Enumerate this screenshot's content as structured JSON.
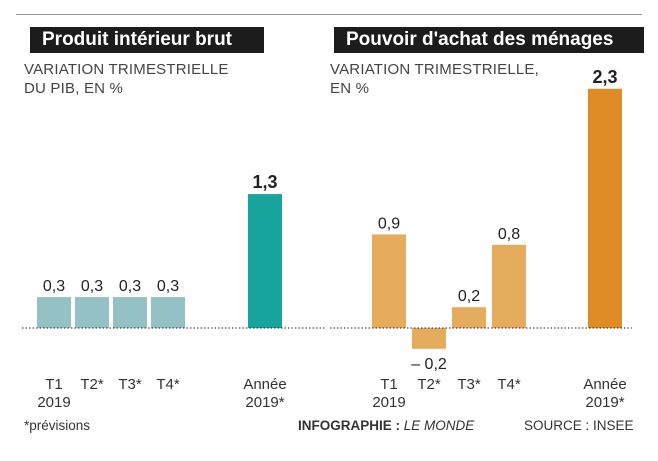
{
  "charts": [
    {
      "title": "Produit intérieur brut",
      "subtitle_line1": "VARIATION TRIMESTRIELLE",
      "subtitle_line2": "DU PIB, EN %"
    },
    {
      "title": "Pouvoir d'achat des ménages",
      "subtitle_line1": "VARIATION TRIMESTRIELLE,",
      "subtitle_line2": "EN %"
    }
  ],
  "chart_data": [
    {
      "type": "bar",
      "title": "Produit intérieur brut",
      "subtitle": "VARIATION TRIMESTRIELLE DU PIB, EN %",
      "categories": [
        [
          "T1",
          "2019"
        ],
        [
          "T2*",
          ""
        ],
        [
          "T3*",
          ""
        ],
        [
          "T4*",
          ""
        ],
        [
          "Année",
          "2019*"
        ]
      ],
      "values": [
        0.3,
        0.3,
        0.3,
        0.3,
        1.3
      ],
      "value_labels": [
        "0,3",
        "0,3",
        "0,3",
        "0,3",
        "1,3"
      ],
      "colors": [
        "#94c1c3",
        "#94c1c3",
        "#94c1c3",
        "#94c1c3",
        "#17a49c"
      ],
      "highlight_last": true
    },
    {
      "type": "bar",
      "title": "Pouvoir d'achat des ménages",
      "subtitle": "VARIATION TRIMESTRIELLE, EN %",
      "categories": [
        [
          "T1",
          "2019"
        ],
        [
          "T2*",
          ""
        ],
        [
          "T3*",
          ""
        ],
        [
          "T4*",
          ""
        ],
        [
          "Année",
          "2019*"
        ]
      ],
      "values": [
        0.9,
        -0.2,
        0.2,
        0.8,
        2.3
      ],
      "value_labels": [
        "0,9",
        "– 0,2",
        "0,2",
        "0,8",
        "2,3"
      ],
      "colors": [
        "#e5ac5e",
        "#e5ac5e",
        "#e5ac5e",
        "#e5ac5e",
        "#e08c26"
      ],
      "highlight_last": true
    }
  ],
  "footer": {
    "note": "*prévisions",
    "credit_prefix": "INFOGRAPHIE : ",
    "credit_name": "LE MONDE",
    "source": "SOURCE : INSEE"
  }
}
